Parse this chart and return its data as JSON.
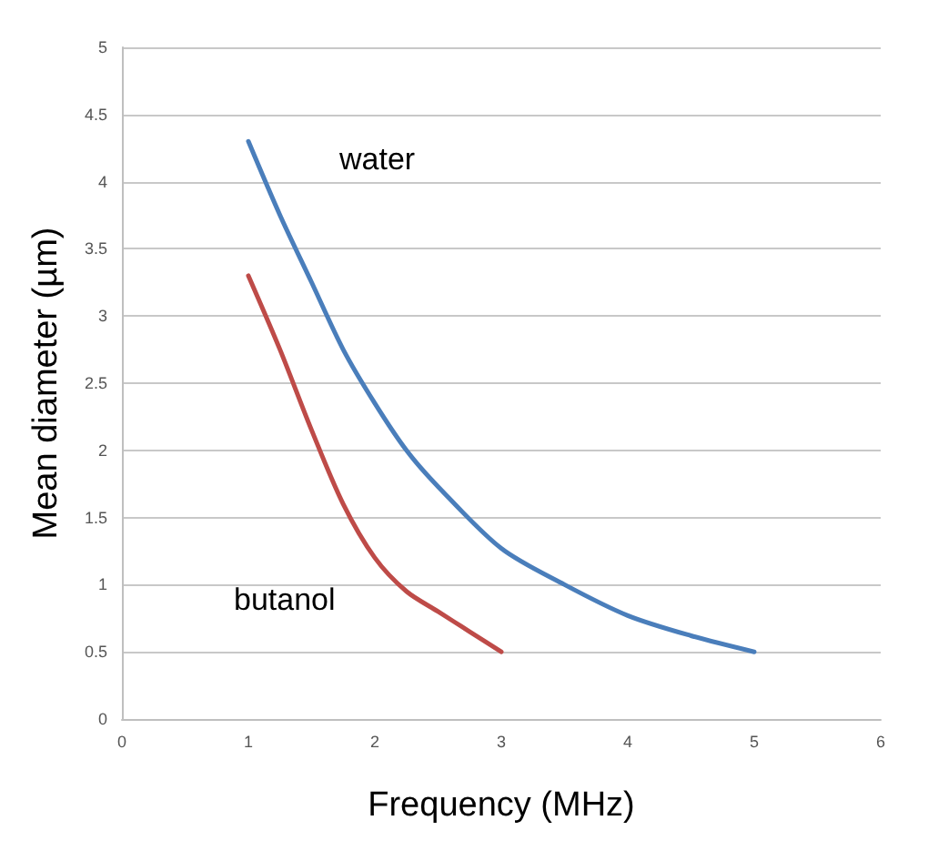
{
  "chart_data": {
    "type": "line",
    "xlabel": "Frequency (MHz)",
    "ylabel": "Mean diameter (µm)",
    "xlim": [
      0,
      6
    ],
    "xticks": [
      0,
      1,
      2,
      3,
      4,
      5,
      6
    ],
    "ylim": [
      0,
      5
    ],
    "yticks": [
      0,
      0.5,
      1,
      1.5,
      2,
      2.5,
      3,
      3.5,
      4,
      4.5,
      5
    ],
    "grid": "y",
    "marker": "none",
    "line_style": "solid",
    "series": [
      {
        "name": "water",
        "color": "#4a7ebb",
        "x": [
          1,
          1.25,
          1.5,
          1.75,
          2,
          2.25,
          2.5,
          3,
          3.5,
          4,
          4.5,
          5
        ],
        "values": [
          4.3,
          3.75,
          3.25,
          2.75,
          2.35,
          2.0,
          1.73,
          1.27,
          1.0,
          0.77,
          0.62,
          0.5
        ]
      },
      {
        "name": "butanol",
        "color": "#be4b48",
        "x": [
          1,
          1.25,
          1.5,
          1.75,
          2,
          2.25,
          2.5,
          2.75,
          3
        ],
        "values": [
          3.3,
          2.75,
          2.15,
          1.6,
          1.2,
          0.95,
          0.8,
          0.65,
          0.5
        ]
      }
    ]
  }
}
